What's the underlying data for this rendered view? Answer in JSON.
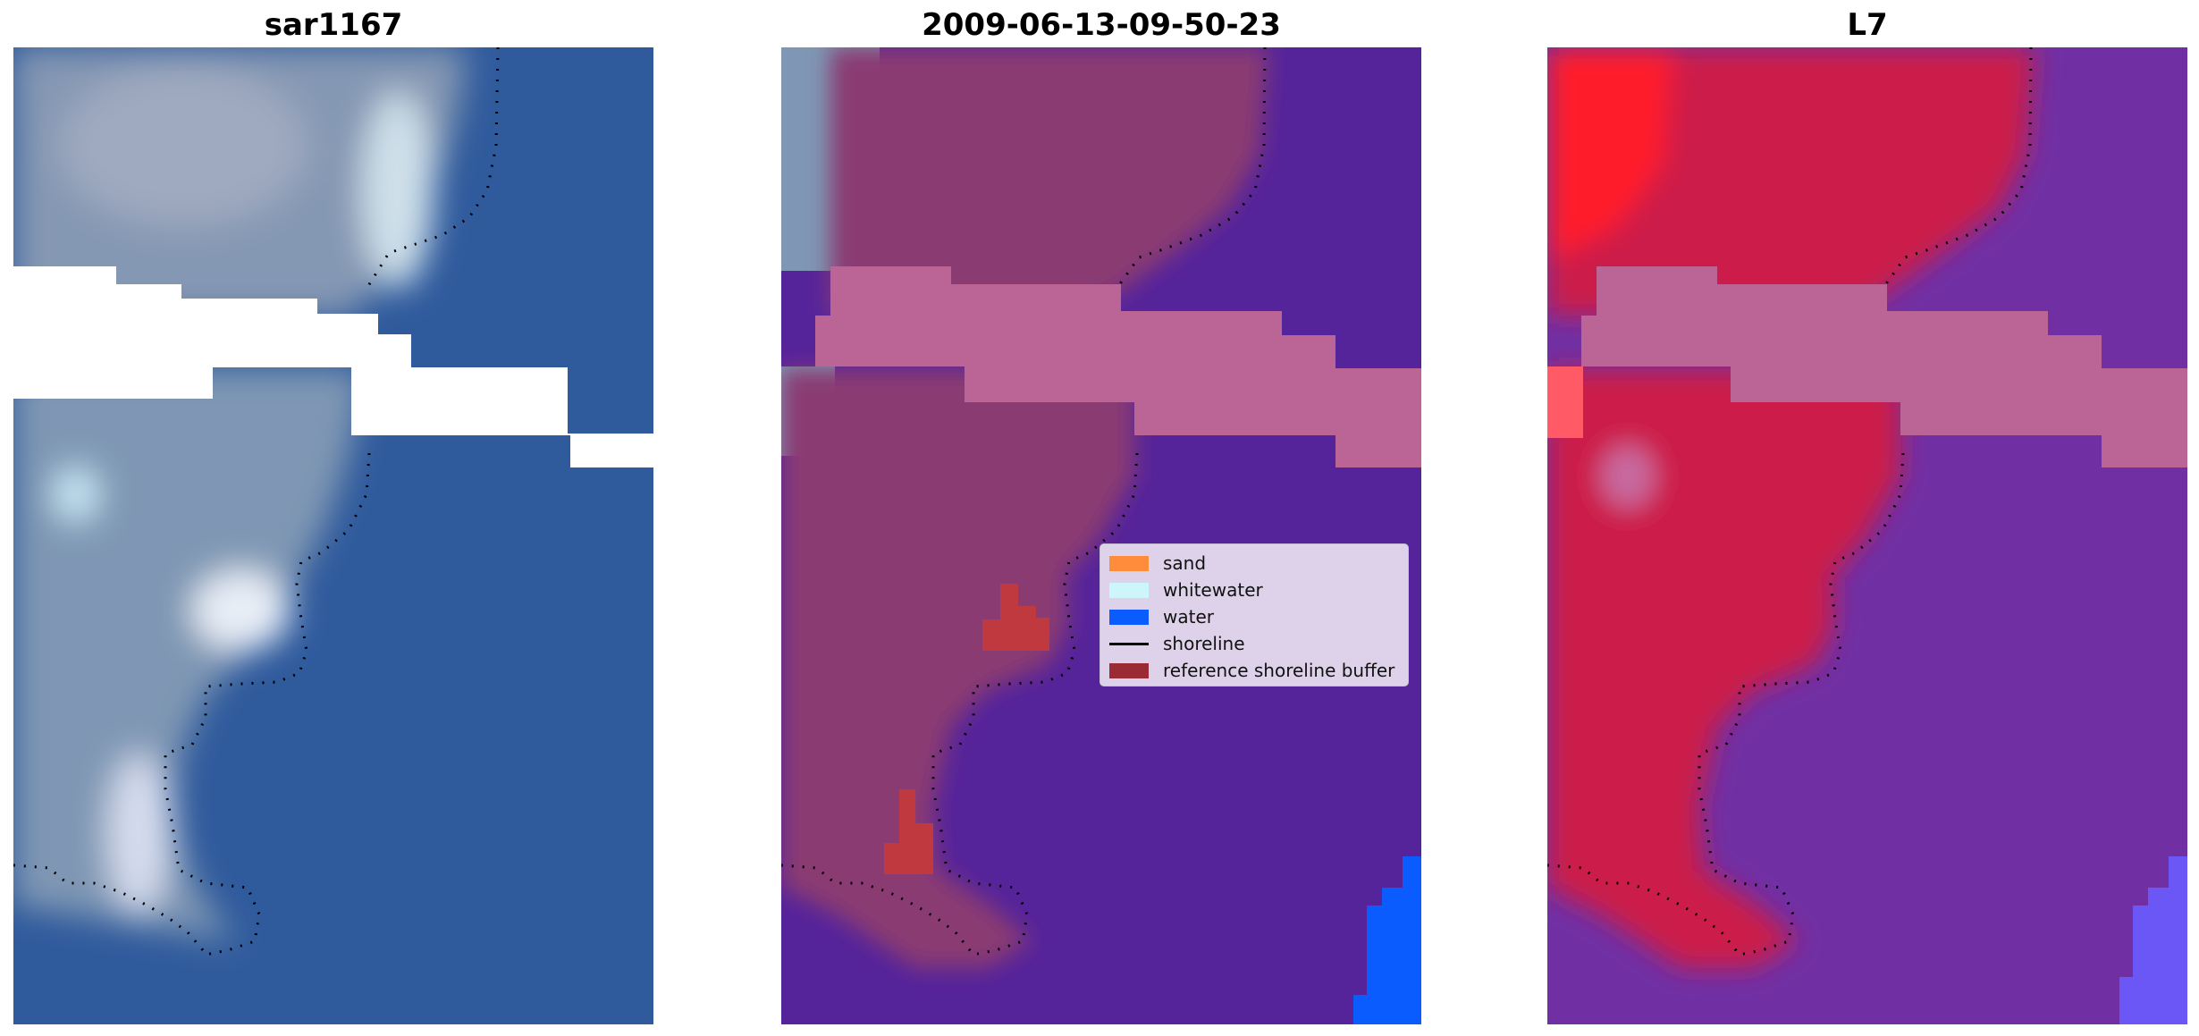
{
  "panels": [
    {
      "title": "sar1167"
    },
    {
      "title": "2009-06-13-09-50-23"
    },
    {
      "title": "L7"
    }
  ],
  "legend": {
    "items": [
      {
        "label": "sand",
        "color": "#ff8c3a",
        "kind": "patch"
      },
      {
        "label": "whitewater",
        "color": "#cdf6fb",
        "kind": "patch"
      },
      {
        "label": "water",
        "color": "#0a5cff",
        "kind": "patch"
      },
      {
        "label": "shoreline",
        "color": "#000000",
        "kind": "line"
      },
      {
        "label": "reference shoreline buffer",
        "color": "#9a2a33",
        "kind": "patch"
      }
    ]
  },
  "colors": {
    "ocean_rgb": "#2f5a9c",
    "land_rgb": "#7f97b4",
    "water_class": "#56249a",
    "land_overlay": "#8a3a72",
    "buffer_band": "#ba6596",
    "buffer_red": "#c0393f",
    "land_red": "#cc1e48",
    "bright_red": "#ff1f2a",
    "water_purple": "#7030a4",
    "blue_corner": "#0a5cff"
  }
}
